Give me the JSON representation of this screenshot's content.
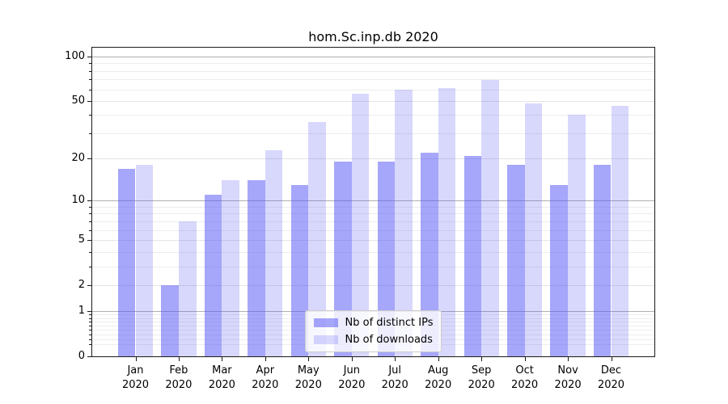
{
  "title": "hom.Sc.inp.db 2020",
  "chart_data": {
    "type": "bar",
    "title": "hom.Sc.inp.db 2020",
    "categories": [
      "Jan 2020",
      "Feb 2020",
      "Mar 2020",
      "Apr 2020",
      "May 2020",
      "Jun 2020",
      "Jul 2020",
      "Aug 2020",
      "Sep 2020",
      "Oct 2020",
      "Nov 2020",
      "Dec 2020"
    ],
    "x_tick_month": [
      "Jan",
      "Feb",
      "Mar",
      "Apr",
      "May",
      "Jun",
      "Jul",
      "Aug",
      "Sep",
      "Oct",
      "Nov",
      "Dec"
    ],
    "x_tick_year": "2020",
    "series": [
      {
        "name": "Nb of distinct IPs",
        "color": "rgba(85,85,245,0.52)",
        "values": [
          17,
          2,
          11,
          14,
          13,
          19,
          19,
          22,
          21,
          18,
          13,
          18
        ]
      },
      {
        "name": "Nb of downloads",
        "color": "rgba(85,85,245,0.23)",
        "values": [
          18,
          7,
          14,
          23,
          36,
          56,
          60,
          61,
          69,
          48,
          40,
          46
        ]
      }
    ],
    "xlabel": "",
    "ylabel": "",
    "yscale": "log1p",
    "ylim": [
      0,
      116
    ],
    "y_ticks_labeled": [
      0,
      1,
      2,
      5,
      10,
      20,
      50,
      100
    ],
    "y_ticks_decade": [
      1,
      10,
      100
    ],
    "y_ticks_minor": [
      0.2,
      0.3,
      0.4,
      0.5,
      0.6,
      0.7,
      0.8,
      0.9,
      3,
      4,
      6,
      7,
      8,
      9,
      30,
      40,
      60,
      70,
      80,
      90
    ],
    "grid": true,
    "legend_position": "lower center",
    "colors": {
      "frame": "#1a1a1a",
      "grid_major": "#b0b0b0",
      "grid_minor": "#ededed",
      "text": "#000000",
      "legend_border": "#cccccc"
    }
  }
}
